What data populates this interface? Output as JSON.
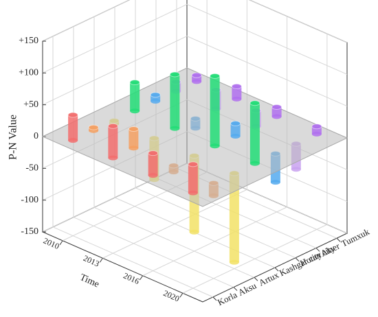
{
  "chart_data": {
    "type": "bar3d",
    "z_label": "P-N Value",
    "x_label": "Time",
    "categories": [
      "2010",
      "2013",
      "2016",
      "2020"
    ],
    "series": [
      {
        "name": "Korla",
        "color": "#f26d6d",
        "values": [
          40,
          50,
          35,
          45
        ]
      },
      {
        "name": "Aksu",
        "color": "#f5a062",
        "values": [
          5,
          30,
          -10,
          -20
        ]
      },
      {
        "name": "Artux",
        "color": "#f2e266",
        "values": [
          -5,
          -65,
          -120,
          -140
        ]
      },
      {
        "name": "Kashgar city",
        "color": "#22dd77",
        "values": [
          45,
          85,
          110,
          95
        ]
      },
      {
        "name": "Hotan city",
        "color": "#55aaee",
        "values": [
          10,
          -15,
          20,
          -45
        ]
      },
      {
        "name": "Alaer",
        "color": "#c9a2f0",
        "values": [
          15,
          30,
          25,
          -40
        ]
      },
      {
        "name": "Tumxuk",
        "color": "#b070ee",
        "values": [
          10,
          20,
          15,
          12
        ]
      }
    ],
    "zlim": [
      -150,
      150
    ],
    "zticks": [
      -150,
      -100,
      -50,
      0,
      {
        "value": 50,
        "label": "+50"
      },
      {
        "value": 100,
        "label": "+100"
      },
      {
        "value": 150,
        "label": "+150"
      }
    ],
    "grid": true
  }
}
